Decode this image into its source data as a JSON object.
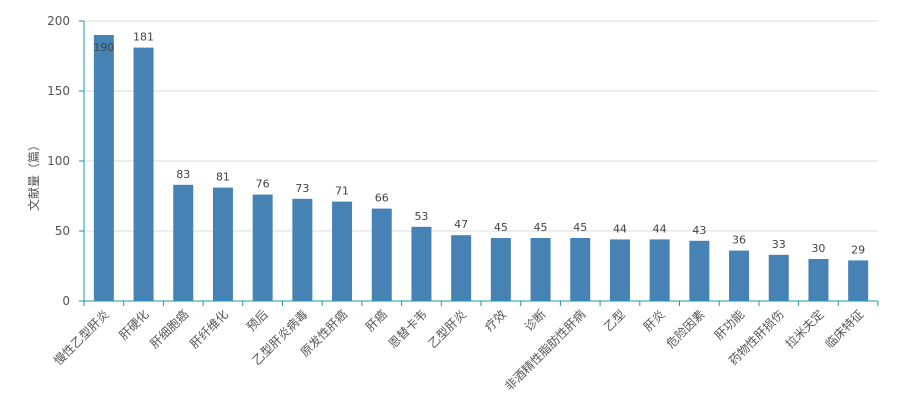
{
  "chart_data": {
    "type": "bar",
    "ylabel": "文献量（篇）",
    "ylim": [
      0,
      200
    ],
    "yticks": [
      0,
      50,
      100,
      150,
      200
    ],
    "grid": true,
    "categories": [
      "慢性乙型肝炎",
      "肝硬化",
      "肝细胞癌",
      "肝纤维化",
      "预后",
      "乙型肝炎病毒",
      "原发性肝癌",
      "肝癌",
      "恩替卡韦",
      "乙型肝炎",
      "疗效",
      "诊断",
      "非酒精性脂肪性肝病",
      "乙型",
      "肝炎",
      "危险因素",
      "肝功能",
      "药物性肝损伤",
      "拉米夫定",
      "临床特征"
    ],
    "values": [
      190,
      181,
      83,
      81,
      76,
      73,
      71,
      66,
      53,
      47,
      45,
      45,
      45,
      44,
      44,
      43,
      36,
      33,
      30,
      29
    ],
    "colors": {
      "bar": "#4682b4",
      "grid": "#dddddd",
      "axis": "#1a9aa8",
      "text": "#555555"
    }
  }
}
